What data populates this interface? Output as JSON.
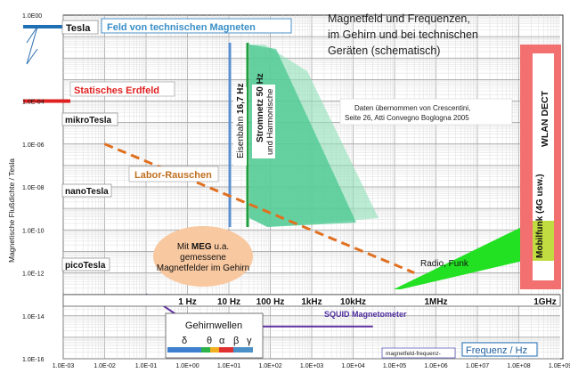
{
  "chart_data": {
    "type": "line",
    "title": "Magnetfeld und Frequenzen, im Gehirn und bei technischen Geräten (schematisch)",
    "xlabel": "Frequenz / Hz",
    "ylabel": "Magnetische Flußdichte / Tesla",
    "x_scale": "log",
    "y_scale": "log",
    "xlim": [
      0.001,
      1000000000
    ],
    "ylim": [
      1e-16,
      1
    ],
    "grid": true,
    "x_ticks": [
      "1.0E-03",
      "1.0E-02",
      "1.0E-01",
      "1.0E+00",
      "1.0E+01",
      "1.0E+02",
      "1.0E+03",
      "1.0E+04",
      "1.0E+05",
      "1.0E+06",
      "1.0E+07",
      "1.0E+08",
      "1.0E+09"
    ],
    "y_ticks": [
      "1.0E00",
      "1.0E-04",
      "1.0E-06",
      "1.0E-08",
      "1.0E-10",
      "1.0E-12",
      "1.0E-14",
      "1.0E-16"
    ],
    "freq_band_labels": [
      {
        "text": "1 Hz",
        "x": 1
      },
      {
        "text": "10 Hz",
        "x": 10
      },
      {
        "text": "100 Hz",
        "x": 100
      },
      {
        "text": "1kHz",
        "x": 1000
      },
      {
        "text": "10kHz",
        "x": 10000
      },
      {
        "text": "1MHz",
        "x": 1000000
      },
      {
        "text": "1GHz",
        "x": 1000000000
      }
    ],
    "magnitude_labels": {
      "tesla": "Tesla",
      "mikro": "mikroTesla",
      "nano": "nanoTesla",
      "pico": "picoTesla"
    },
    "series": [
      {
        "name": "Feld von technischen Magneten",
        "x": [
          0.001,
          0.004
        ],
        "y": [
          1,
          1
        ],
        "color": "#1f6fb5"
      },
      {
        "name": "Statisches Erdfeld",
        "x": [
          0.001,
          0.02
        ],
        "y": [
          0.0001,
          0.0001
        ],
        "color": "#e02020"
      },
      {
        "name": "Labor-Rauschen",
        "x": [
          0.01,
          300000
        ],
        "y": [
          1e-06,
          1e-12
        ],
        "color": "#e07020",
        "dashed": true
      },
      {
        "name": "SQUID Magnetometer",
        "x": [
          0.1,
          0.6,
          10,
          30000
        ],
        "y": [
          1e-13,
          1e-14,
          3.2e-15,
          3.2e-15
        ],
        "color": "#6030a0"
      },
      {
        "name": "Eisenbahn 16,7 Hz",
        "x": [
          16.7,
          16.7
        ],
        "y": [
          0.05,
          1e-11
        ],
        "color": "#5b8fd0"
      },
      {
        "name": "Stromnetz 50 Hz",
        "x": [
          50,
          50
        ],
        "y": [
          0.05,
          1e-11
        ],
        "color": "#1e9e3e"
      }
    ],
    "regions": [
      {
        "name": "Stromnetz und Harmonische",
        "color": "#40c090"
      },
      {
        "name": "Radio, Funk",
        "color": "#22dd22"
      },
      {
        "name": "WLAN DECT",
        "color": "#f07070"
      },
      {
        "name": "Mobilfunk (4G usw.)",
        "color": "#f4b0b0"
      },
      {
        "name": "Mit MEG u.a. gemessene Magnetfelder im Gehirn",
        "color": "#f8c8a0"
      }
    ],
    "annotations": {
      "source_line1": "Daten übernommen von Crescentini,",
      "source_line2": "Seite 26,  Atti Convegno Boglogna 2005",
      "eisenbahn_a": "Eisenbahn",
      "eisenbahn_b": "16,7 Hz",
      "stromnetz_a": "Stromnetz",
      "stromnetz_b": "50 Hz",
      "stromnetz_c": "und Harmonische",
      "wlan": "WLAN  DECT",
      "mobil_a": "Mobilfunk",
      "mobil_b": "(4G usw.)",
      "meg_prefix": "Mit ",
      "meg_bold": "MEG",
      "meg_suffix": " u.a.",
      "meg_line2": "gemessene",
      "meg_line3": "Magnetfelder im Gehirn",
      "radio": "Radio, Funk",
      "brainwaves_title": "Gehirnwellen",
      "brainwaves_symbols": [
        "δ",
        "θ",
        "α",
        "β",
        "γ"
      ],
      "small_label": "magnetfeld-frequenz-"
    }
  }
}
